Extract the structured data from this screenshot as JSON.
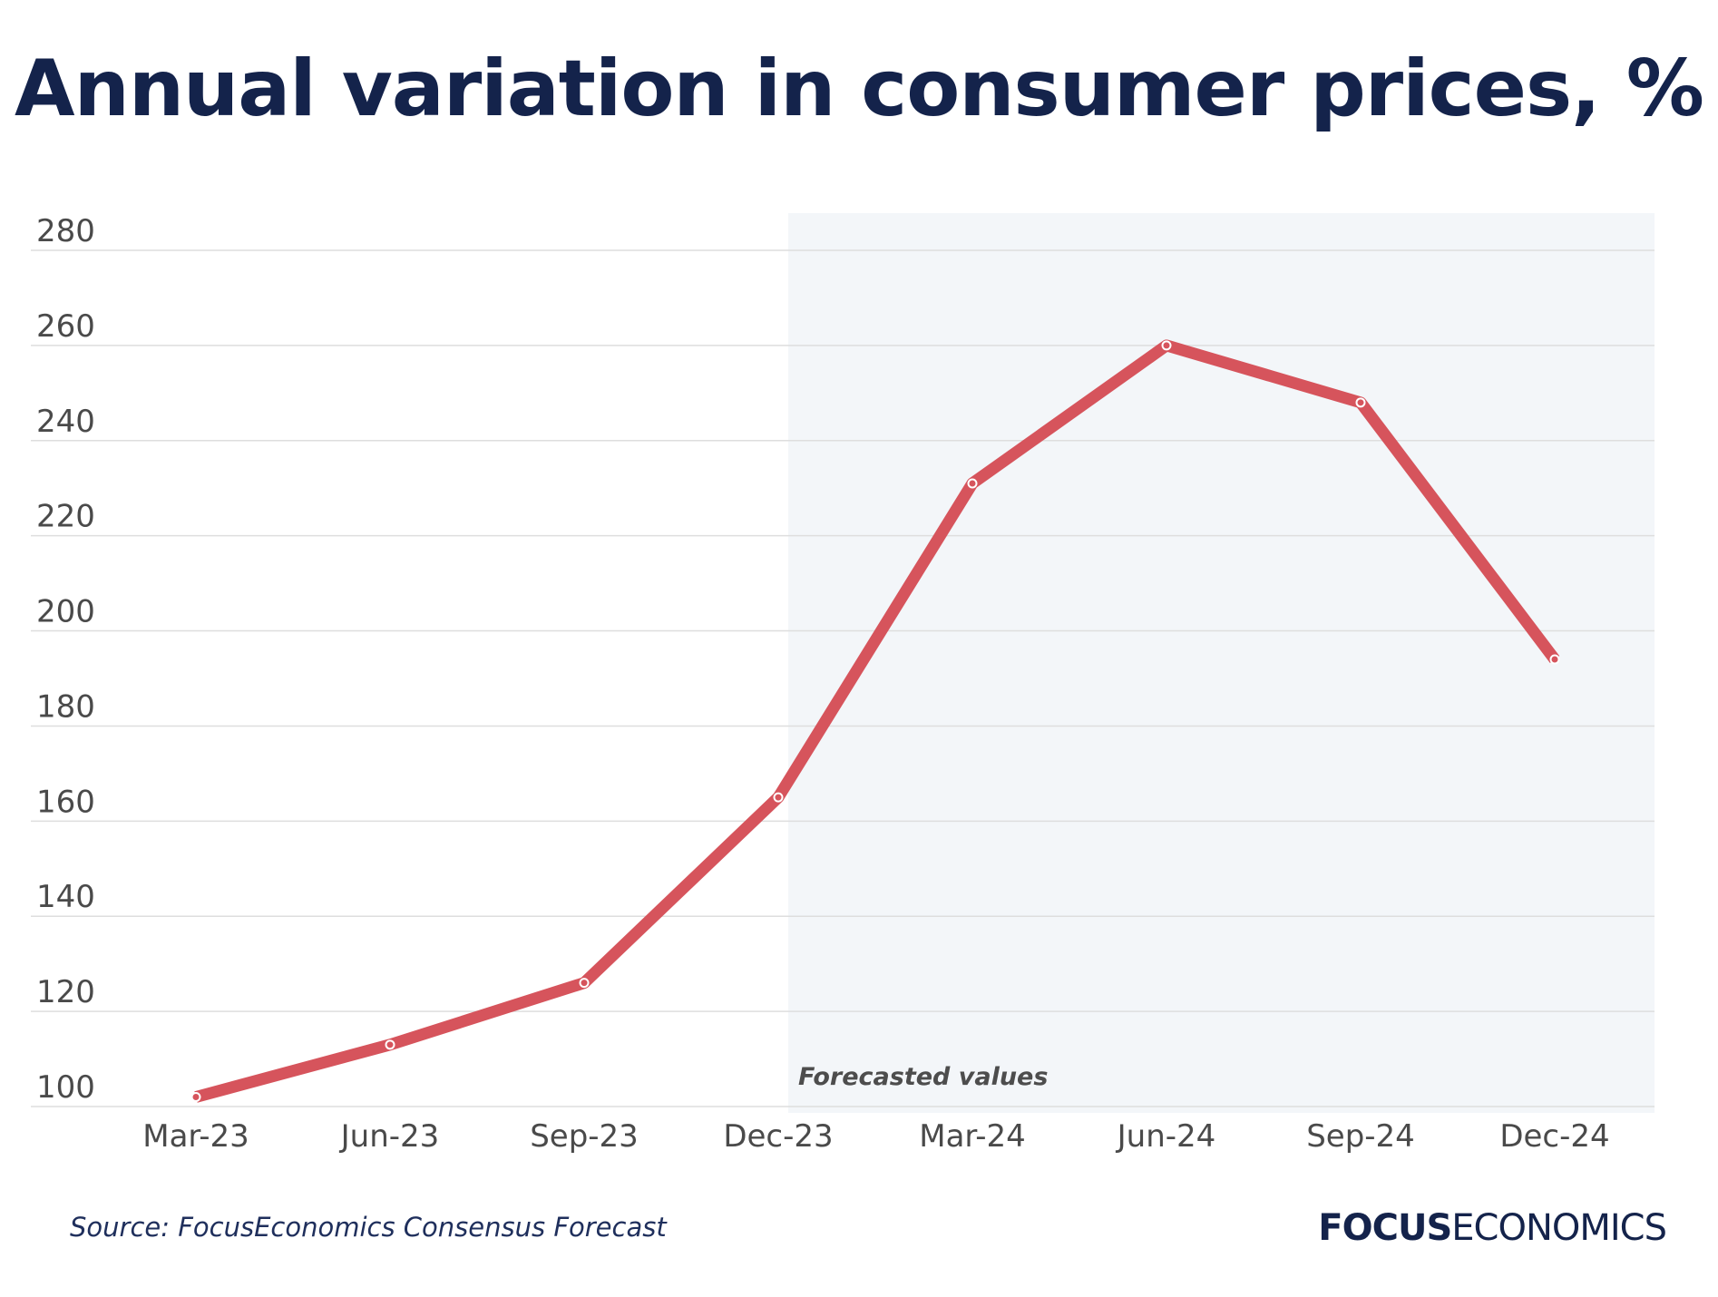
{
  "chart_data": {
    "type": "line",
    "title": "Annual variation in consumer prices, %",
    "xlabel": "",
    "ylabel": "",
    "categories": [
      "Mar-23",
      "Jun-23",
      "Sep-23",
      "Dec-23",
      "Mar-24",
      "Jun-24",
      "Sep-24",
      "Dec-24"
    ],
    "series": [
      {
        "name": "Annual variation in consumer prices",
        "values": [
          102,
          113,
          126,
          165,
          231,
          260,
          248,
          194
        ],
        "color": "#d6545c"
      }
    ],
    "ylim": [
      100,
      280
    ],
    "yticks": [
      "100",
      "120",
      "140",
      "160",
      "180",
      "200",
      "220",
      "240",
      "260",
      "280"
    ],
    "grid": true,
    "forecast_region": {
      "label": "Forecasted values",
      "from_category": "Dec-23",
      "to_category": "Dec-24",
      "color": "#f3f6f9"
    }
  },
  "source": "Source: FocusEconomics Consensus Forecast",
  "brand": {
    "bold_part": "FOCUS",
    "light_part": "ECONOMICS"
  },
  "colors": {
    "title": "#14234b",
    "axis_text": "#4a4a4a",
    "grid": "#dedede",
    "line": "#d6545c"
  }
}
